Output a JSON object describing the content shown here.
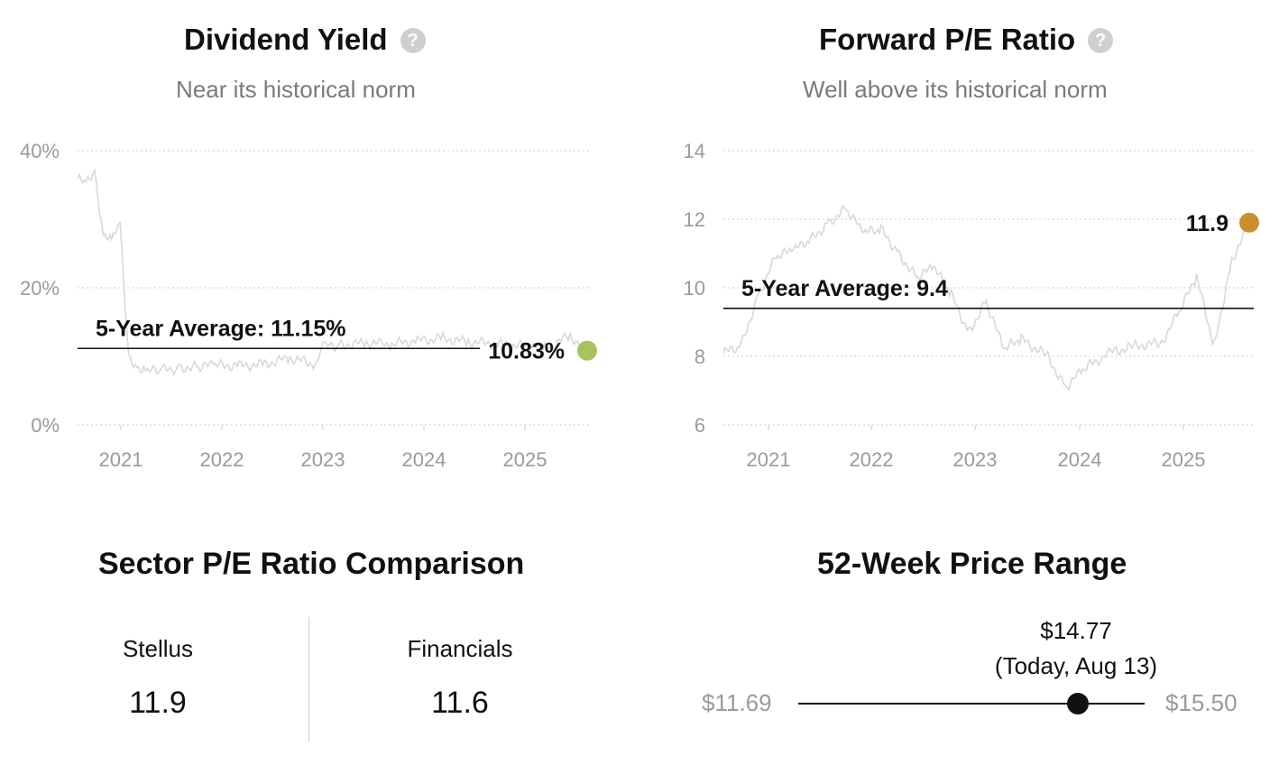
{
  "chart_data": [
    {
      "type": "line",
      "title": "Dividend Yield",
      "subtitle": "Near its historical norm",
      "y_ticks": [
        "40%",
        "20%",
        "0%"
      ],
      "x_ticks": [
        "2021",
        "2022",
        "2023",
        "2024",
        "2025"
      ],
      "ylim": [
        0,
        40
      ],
      "xlim": [
        "2020-08",
        "2025-08"
      ],
      "grid": true,
      "average": {
        "label": "5-Year Average: 11.15%",
        "value": 11.15
      },
      "current": {
        "label": "10.83%",
        "value": 10.83,
        "color": "#a9c25e"
      },
      "series": [
        {
          "x": [
            "2020-08",
            "2020-09",
            "2020-10",
            "2020-11",
            "2020-12",
            "2021-01",
            "2021-02",
            "2021-03",
            "2021-04",
            "2021-06",
            "2021-08",
            "2021-10",
            "2021-12",
            "2022-03",
            "2022-06",
            "2022-09",
            "2022-12",
            "2023-01",
            "2023-03",
            "2023-06",
            "2023-09",
            "2023-12",
            "2024-03",
            "2024-06",
            "2024-09",
            "2025-01",
            "2025-03",
            "2025-06",
            "2025-08"
          ],
          "values": [
            36,
            35,
            37,
            28,
            27,
            29,
            10,
            8.5,
            7.8,
            8.0,
            8.3,
            8.5,
            8.7,
            8.6,
            8.8,
            9.8,
            8.8,
            11.5,
            11.6,
            12.0,
            11.8,
            12.3,
            12.6,
            12.1,
            11.9,
            11.4,
            11.1,
            13.0,
            10.83
          ],
          "color": "#d8d8d8"
        }
      ]
    },
    {
      "type": "line",
      "title": "Forward P/E Ratio",
      "subtitle": "Well above its historical norm",
      "y_ticks": [
        "14",
        "12",
        "10",
        "8",
        "6"
      ],
      "x_ticks": [
        "2021",
        "2022",
        "2023",
        "2024",
        "2025"
      ],
      "ylim": [
        6,
        14
      ],
      "xlim": [
        "2020-08",
        "2025-08"
      ],
      "grid": true,
      "average": {
        "label": "5-Year Average: 9.4",
        "value": 9.4
      },
      "current": {
        "label": "11.9",
        "value": 11.9,
        "color": "#c9902f"
      },
      "series": [
        {
          "x": [
            "2020-08",
            "2020-10",
            "2020-12",
            "2021-02",
            "2021-04",
            "2021-06",
            "2021-08",
            "2021-10",
            "2021-12",
            "2022-02",
            "2022-04",
            "2022-06",
            "2022-08",
            "2022-10",
            "2022-12",
            "2023-02",
            "2023-04",
            "2023-06",
            "2023-09",
            "2023-11",
            "2024-01",
            "2024-04",
            "2024-07",
            "2024-10",
            "2024-12",
            "2025-02",
            "2025-04",
            "2025-06",
            "2025-08"
          ],
          "values": [
            8.1,
            8.3,
            9.8,
            10.9,
            11.1,
            11.4,
            11.9,
            12.3,
            11.6,
            11.7,
            11.0,
            10.3,
            10.6,
            9.8,
            8.7,
            9.6,
            8.2,
            8.5,
            8.0,
            7.1,
            7.6,
            8.1,
            8.3,
            8.4,
            9.3,
            10.3,
            8.3,
            10.8,
            11.9
          ],
          "color": "#d8d8d8"
        }
      ]
    }
  ],
  "sector_comparison": {
    "title": "Sector P/E Ratio Comparison",
    "items": [
      {
        "name": "Stellus",
        "value": "11.9"
      },
      {
        "name": "Financials",
        "value": "11.6"
      }
    ]
  },
  "price_range": {
    "title": "52-Week Price Range",
    "low": "$11.69",
    "high": "$15.50",
    "current": "$14.77",
    "current_note": "(Today, Aug 13)",
    "low_value": 11.69,
    "high_value": 15.5,
    "current_value": 14.77
  },
  "help_icon": "question-circle-icon"
}
